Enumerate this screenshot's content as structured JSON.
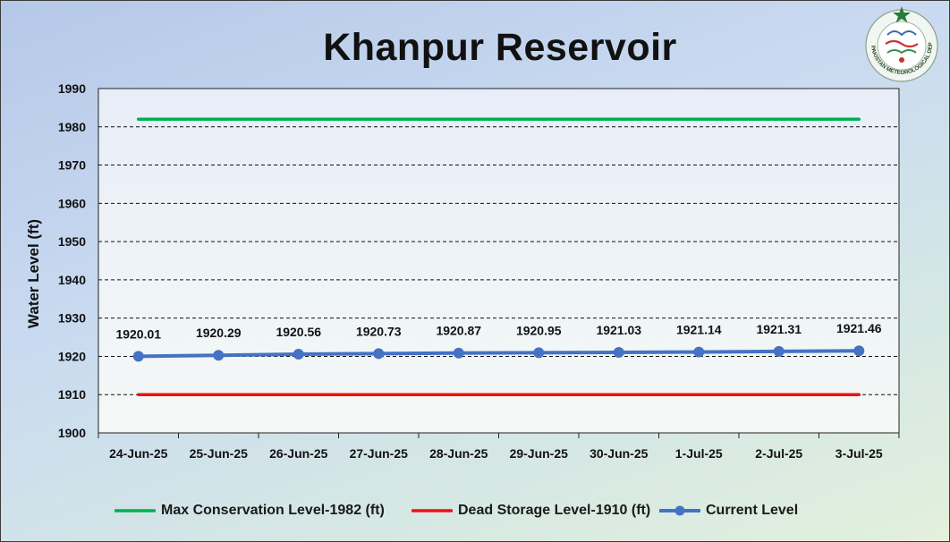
{
  "chart_data": {
    "type": "line",
    "title": "Khanpur Reservoir",
    "ylabel": "Water Level (ft)",
    "xlabel": "",
    "categories": [
      "24-Jun-25",
      "25-Jun-25",
      "26-Jun-25",
      "27-Jun-25",
      "28-Jun-25",
      "29-Jun-25",
      "30-Jun-25",
      "1-Jul-25",
      "2-Jul-25",
      "3-Jul-25"
    ],
    "ylim": [
      1900,
      1990
    ],
    "yticks": [
      "1900",
      "1910",
      "1920",
      "1930",
      "1940",
      "1950",
      "1960",
      "1970",
      "1980",
      "1990"
    ],
    "grid": true,
    "legend_position": "bottom",
    "series": [
      {
        "name": "Max Conservation Level-1982 (ft)",
        "color": "#00b050",
        "values": [
          1982,
          1982,
          1982,
          1982,
          1982,
          1982,
          1982,
          1982,
          1982,
          1982
        ],
        "markers": false,
        "data_labels": false
      },
      {
        "name": "Dead Storage Level-1910 (ft)",
        "color": "#ee1111",
        "values": [
          1910,
          1910,
          1910,
          1910,
          1910,
          1910,
          1910,
          1910,
          1910,
          1910
        ],
        "markers": false,
        "data_labels": false
      },
      {
        "name": "Current Level",
        "color": "#4472c4",
        "values": [
          1920.01,
          1920.29,
          1920.56,
          1920.73,
          1920.87,
          1920.95,
          1921.03,
          1921.14,
          1921.31,
          1921.46
        ],
        "markers": true,
        "data_labels": true,
        "labels": [
          "1920.01",
          "1920.29",
          "1920.56",
          "1920.73",
          "1920.87",
          "1920.95",
          "1921.03",
          "1921.14",
          "1921.31",
          "1921.46"
        ]
      }
    ]
  },
  "logo": {
    "text": "PAKISTAN METEOROLOGICAL DEPARTMENT",
    "icon": "pmd-logo-icon"
  }
}
